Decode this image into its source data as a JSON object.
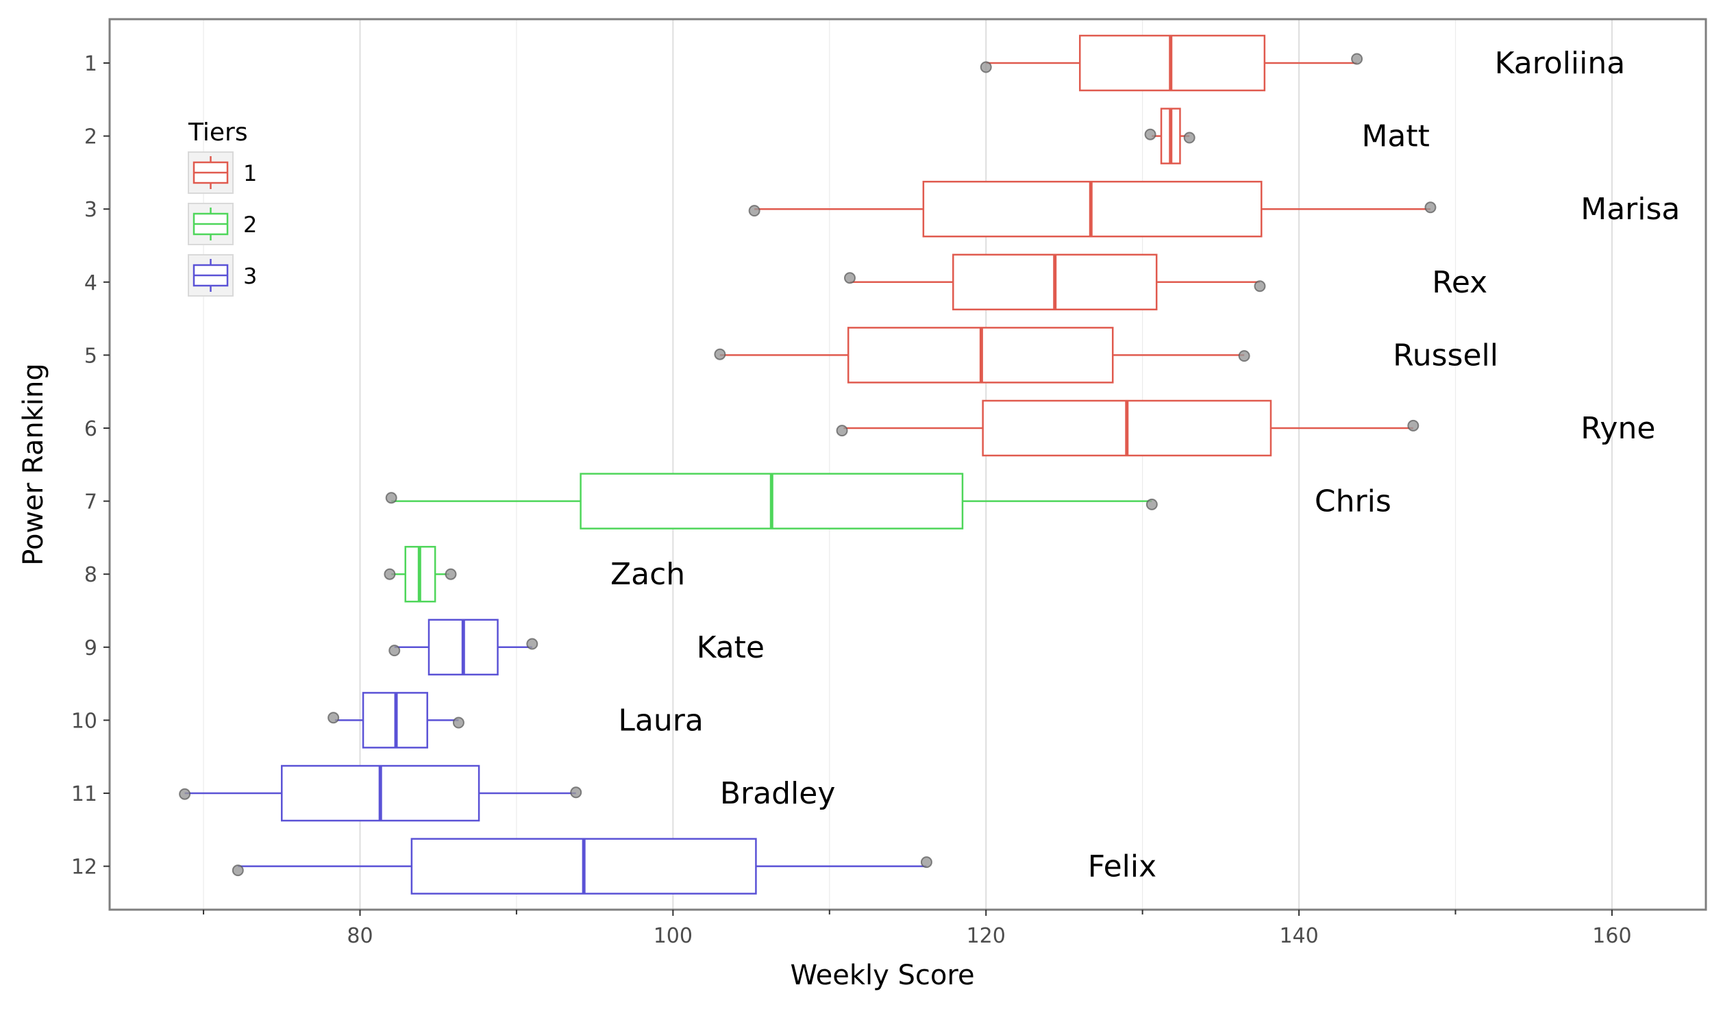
{
  "chart_data": {
    "type": "boxplot",
    "orientation": "horizontal",
    "xlabel": "Weekly Score",
    "ylabel": "Power Ranking",
    "xlim": [
      64,
      166
    ],
    "x_ticks": [
      80,
      100,
      120,
      140,
      160
    ],
    "x_minor_ticks": [
      70,
      90,
      110,
      130,
      150
    ],
    "y_categories": [
      "1",
      "2",
      "3",
      "4",
      "5",
      "6",
      "7",
      "8",
      "9",
      "10",
      "11",
      "12"
    ],
    "grid": true,
    "legend": {
      "title": "Tiers",
      "placement": "top-left",
      "entries": [
        {
          "label": "1",
          "color": "#e05a4e"
        },
        {
          "label": "2",
          "color": "#4ed65a"
        },
        {
          "label": "3",
          "color": "#5a52d6"
        }
      ]
    },
    "series": [
      {
        "rank": 1,
        "name": "Karoliina",
        "tier": "1",
        "whisker_low": 120.0,
        "q1": 126.0,
        "median": 131.8,
        "q3": 137.8,
        "whisker_high": 143.7,
        "points": [
          120.0,
          143.7
        ],
        "label_x": 152.5
      },
      {
        "rank": 2,
        "name": "Matt",
        "tier": "1",
        "whisker_low": 130.6,
        "q1": 131.2,
        "median": 131.8,
        "q3": 132.4,
        "whisker_high": 133.0,
        "points": [
          130.5,
          133.0
        ],
        "label_x": 144.0
      },
      {
        "rank": 3,
        "name": "Marisa",
        "tier": "1",
        "whisker_low": 105.2,
        "q1": 116.0,
        "median": 126.7,
        "q3": 137.6,
        "whisker_high": 148.4,
        "points": [
          105.2,
          148.4
        ],
        "label_x": 158.0
      },
      {
        "rank": 4,
        "name": "Rex",
        "tier": "1",
        "whisker_low": 111.3,
        "q1": 117.9,
        "median": 124.4,
        "q3": 130.9,
        "whisker_high": 137.5,
        "points": [
          111.3,
          137.5
        ],
        "label_x": 148.5
      },
      {
        "rank": 5,
        "name": "Russell",
        "tier": "1",
        "whisker_low": 103.0,
        "q1": 111.2,
        "median": 119.7,
        "q3": 128.1,
        "whisker_high": 136.5,
        "points": [
          103.0,
          136.5
        ],
        "label_x": 146.0
      },
      {
        "rank": 6,
        "name": "Ryne",
        "tier": "1",
        "whisker_low": 110.9,
        "q1": 119.8,
        "median": 129.0,
        "q3": 138.2,
        "whisker_high": 147.3,
        "points": [
          110.8,
          147.3
        ],
        "label_x": 158.0
      },
      {
        "rank": 7,
        "name": "Chris",
        "tier": "2",
        "whisker_low": 82.0,
        "q1": 94.1,
        "median": 106.3,
        "q3": 118.5,
        "whisker_high": 130.6,
        "points": [
          82.0,
          130.6
        ],
        "label_x": 141.0
      },
      {
        "rank": 8,
        "name": "Zach",
        "tier": "2",
        "whisker_low": 82.0,
        "q1": 82.9,
        "median": 83.8,
        "q3": 84.8,
        "whisker_high": 85.7,
        "points": [
          81.9,
          85.8
        ],
        "label_x": 96.0
      },
      {
        "rank": 9,
        "name": "Kate",
        "tier": "3",
        "whisker_low": 82.2,
        "q1": 84.4,
        "median": 86.6,
        "q3": 88.8,
        "whisker_high": 91.0,
        "points": [
          82.2,
          91.0
        ],
        "label_x": 101.5
      },
      {
        "rank": 10,
        "name": "Laura",
        "tier": "3",
        "whisker_low": 78.4,
        "q1": 80.2,
        "median": 82.3,
        "q3": 84.3,
        "whisker_high": 86.3,
        "points": [
          78.3,
          86.3
        ],
        "label_x": 96.5
      },
      {
        "rank": 11,
        "name": "Bradley",
        "tier": "3",
        "whisker_low": 68.8,
        "q1": 75.0,
        "median": 81.3,
        "q3": 87.6,
        "whisker_high": 93.8,
        "points": [
          68.8,
          93.8
        ],
        "label_x": 103.0
      },
      {
        "rank": 12,
        "name": "Felix",
        "tier": "3",
        "whisker_low": 72.2,
        "q1": 83.3,
        "median": 94.3,
        "q3": 105.3,
        "whisker_high": 116.2,
        "points": [
          72.2,
          116.2
        ],
        "label_x": 126.5
      }
    ]
  }
}
